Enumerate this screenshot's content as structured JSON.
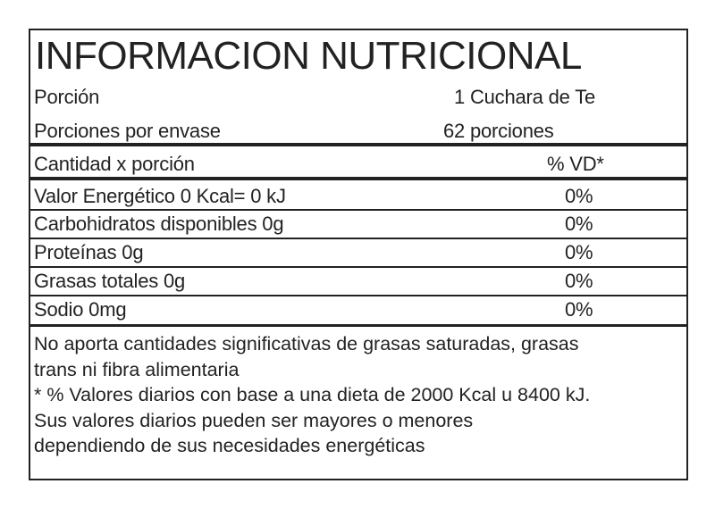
{
  "title": "INFORMACION NUTRICIONAL",
  "serving": {
    "label": "Porción",
    "value": "1 Cuchara de Te"
  },
  "servings_per_container": {
    "label": "Porciones por envase",
    "value": "62 porciones"
  },
  "header": {
    "label": "Cantidad x porción",
    "value": "% VD*"
  },
  "nutrients": [
    {
      "label": "Valor Energético 0 Kcal= 0 kJ",
      "value": "0%"
    },
    {
      "label": "Carbohidratos disponibles 0g",
      "value": "0%"
    },
    {
      "label": "Proteínas 0g",
      "value": "0%"
    },
    {
      "label": "Grasas totales 0g",
      "value": "0%"
    },
    {
      "label": "Sodio 0mg",
      "value": "0%"
    }
  ],
  "footnotes": [
    "No aporta cantidades significativas de grasas saturadas, grasas",
    "trans ni fibra alimentaria",
    "* % Valores diarios con base a una dieta de 2000 Kcal u 8400 kJ.",
    "Sus valores diarios pueden ser mayores o menores",
    "dependiendo de sus necesidades energéticas"
  ]
}
